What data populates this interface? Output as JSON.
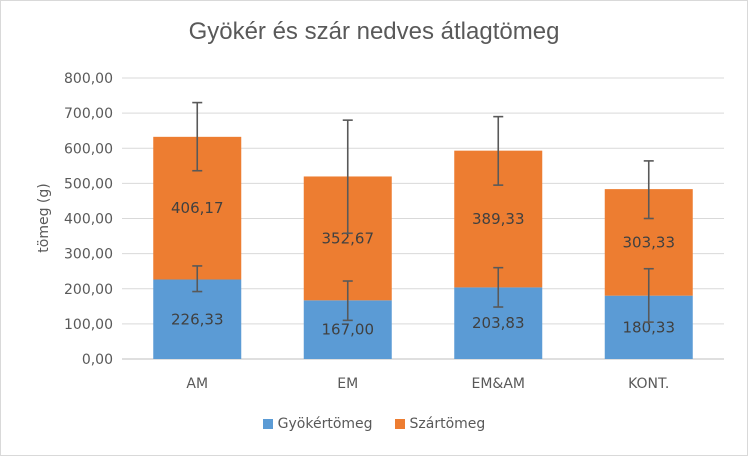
{
  "chart_data": {
    "type": "bar",
    "stacked": true,
    "title": "Gyökér és szár nedves átlagtömeg",
    "ylabel": "tömeg (g)",
    "ylim": [
      0,
      800
    ],
    "yticks": [
      "0,00",
      "100,00",
      "200,00",
      "300,00",
      "400,00",
      "500,00",
      "600,00",
      "700,00",
      "800,00"
    ],
    "categories": [
      "AM",
      "EM",
      "EM&AM",
      "KONT."
    ],
    "grid": true,
    "legend_position": "bottom",
    "series": [
      {
        "name": "Gyökértömeg",
        "color": "#5b9bd5",
        "values": [
          226.33,
          167.0,
          203.83,
          180.33
        ],
        "labels": [
          "226,33",
          "167,00",
          "203,83",
          "180,33"
        ],
        "error_low": [
          192,
          110,
          148,
          105
        ],
        "error_high": [
          265,
          222,
          260,
          257
        ]
      },
      {
        "name": "Szártömeg",
        "color": "#ed7d31",
        "values": [
          406.17,
          352.67,
          389.33,
          303.33
        ],
        "labels": [
          "406,17",
          "352,67",
          "389,33",
          "303,33"
        ],
        "error_low": [
          536,
          358,
          495,
          400
        ],
        "error_high": [
          730,
          680,
          690,
          564
        ]
      }
    ]
  }
}
